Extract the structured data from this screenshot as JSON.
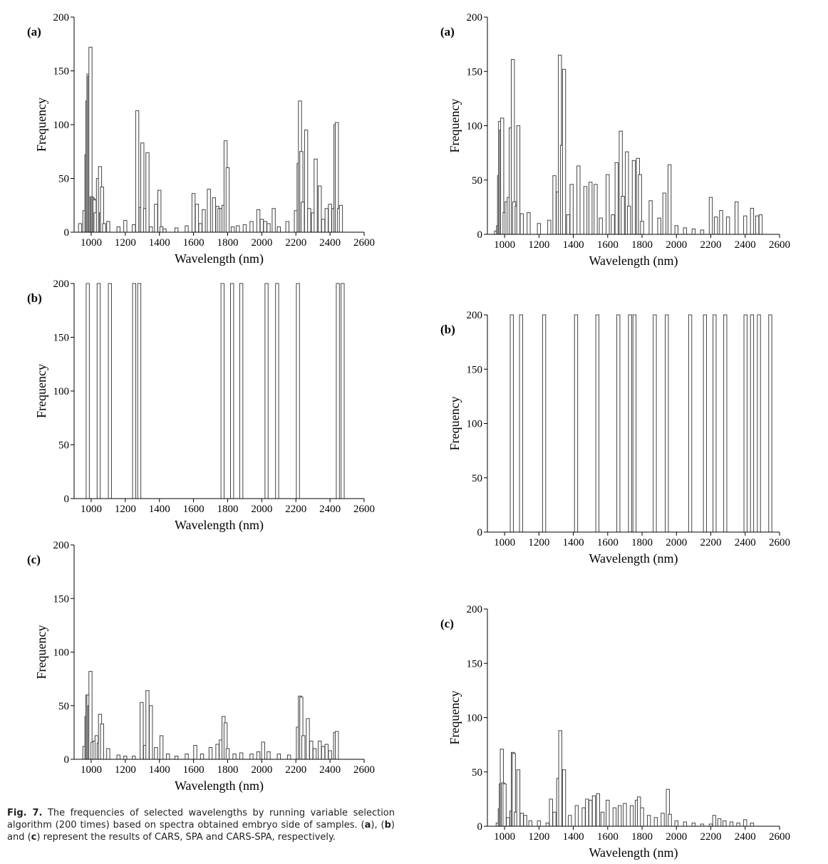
{
  "caption": {
    "figure_label": "Fig. 7.",
    "text_1": " The frequencies of selected wavelengths by running variable selection algorithm (200 times) based on spectra obtained embryo side of samples. (",
    "a": "a",
    "text_2": "), (",
    "b": "b",
    "text_3": ") and (",
    "c": "c",
    "text_4": ") represent the results of CARS, SPA and CARS-SPA, respectively."
  },
  "chart_data": [
    {
      "id": "left-a",
      "type": "bar",
      "panel_label": "(a)",
      "xlabel": "Wavelength (nm)",
      "ylabel": "Frequency",
      "xlim": [
        900,
        2600
      ],
      "ylim": [
        0,
        200
      ],
      "xticks": [
        "1000",
        "1200",
        "1400",
        "1600",
        "1800",
        "2000",
        "2200",
        "2400",
        "2600"
      ],
      "yticks": [
        "0",
        "50",
        "100",
        "150",
        "200"
      ],
      "x": [
        935,
        960,
        972,
        978,
        984,
        990,
        996,
        1002,
        1008,
        1014,
        1020,
        1026,
        1040,
        1052,
        1058,
        1064,
        1076,
        1100,
        1160,
        1200,
        1250,
        1270,
        1290,
        1300,
        1316,
        1330,
        1350,
        1380,
        1400,
        1412,
        1430,
        1500,
        1560,
        1600,
        1620,
        1640,
        1660,
        1690,
        1720,
        1740,
        1752,
        1764,
        1776,
        1788,
        1800,
        1830,
        1860,
        1900,
        1940,
        1980,
        2000,
        2020,
        2040,
        2070,
        2100,
        2150,
        2200,
        2216,
        2224,
        2232,
        2240,
        2260,
        2278,
        2300,
        2316,
        2340,
        2360,
        2380,
        2400,
        2420,
        2432,
        2440,
        2452,
        2464
      ],
      "values": [
        8,
        20,
        72,
        122,
        147,
        145,
        172,
        33,
        32,
        31,
        30,
        18,
        50,
        61,
        18,
        42,
        8,
        10,
        5,
        11,
        7,
        113,
        23,
        83,
        22,
        74,
        5,
        26,
        39,
        5,
        3,
        4,
        6,
        36,
        26,
        8,
        21,
        40,
        32,
        24,
        22,
        22,
        25,
        85,
        60,
        5,
        6,
        7,
        10,
        21,
        12,
        10,
        8,
        22,
        5,
        10,
        20,
        64,
        122,
        75,
        28,
        95,
        22,
        18,
        68,
        43,
        12,
        22,
        26,
        22,
        100,
        102,
        22,
        25
      ]
    },
    {
      "id": "left-b",
      "type": "bar",
      "panel_label": "(b)",
      "xlabel": "Wavelength (nm)",
      "ylabel": "Frequency",
      "xlim": [
        900,
        2600
      ],
      "ylim": [
        0,
        200
      ],
      "xticks": [
        "1000",
        "1200",
        "1400",
        "1600",
        "1800",
        "2000",
        "2200",
        "2400",
        "2600"
      ],
      "yticks": [
        "0",
        "50",
        "100",
        "150",
        "200"
      ],
      "x": [
        980,
        1044,
        1110,
        1252,
        1282,
        1770,
        1826,
        1880,
        2028,
        2090,
        2212,
        2446,
        2474
      ],
      "values": [
        200,
        200,
        200,
        200,
        200,
        200,
        200,
        200,
        200,
        200,
        200,
        200,
        200
      ]
    },
    {
      "id": "left-c",
      "type": "bar",
      "panel_label": "(c)",
      "xlabel": "Wavelength (nm)",
      "ylabel": "Frequency",
      "xlim": [
        900,
        2600
      ],
      "ylim": [
        0,
        200
      ],
      "xticks": [
        "1000",
        "1200",
        "1400",
        "1600",
        "1800",
        "2000",
        "2200",
        "2400",
        "2600"
      ],
      "yticks": [
        "0",
        "50",
        "100",
        "150",
        "200"
      ],
      "x": [
        960,
        972,
        978,
        984,
        990,
        996,
        1008,
        1020,
        1032,
        1044,
        1052,
        1064,
        1100,
        1160,
        1200,
        1250,
        1296,
        1316,
        1330,
        1350,
        1380,
        1412,
        1450,
        1500,
        1560,
        1610,
        1650,
        1700,
        1740,
        1760,
        1776,
        1788,
        1800,
        1840,
        1880,
        1940,
        1980,
        2008,
        2040,
        2100,
        2160,
        2212,
        2224,
        2232,
        2244,
        2270,
        2290,
        2310,
        2340,
        2360,
        2380,
        2400,
        2430,
        2440
      ],
      "values": [
        12,
        40,
        60,
        60,
        50,
        82,
        16,
        17,
        22,
        15,
        42,
        33,
        10,
        4,
        3,
        3,
        53,
        13,
        64,
        50,
        11,
        22,
        5,
        3,
        5,
        13,
        5,
        11,
        14,
        18,
        40,
        34,
        10,
        5,
        6,
        5,
        7,
        16,
        7,
        5,
        4,
        30,
        59,
        58,
        22,
        38,
        17,
        10,
        17,
        12,
        14,
        8,
        25,
        26
      ]
    },
    {
      "id": "right-a",
      "type": "bar",
      "panel_label": "(a)",
      "xlabel": "Wavelength (nm)",
      "ylabel": "Frequency",
      "xlim": [
        900,
        2600
      ],
      "ylim": [
        0,
        200
      ],
      "xticks": [
        "1000",
        "1200",
        "1400",
        "1600",
        "1800",
        "2000",
        "2200",
        "2400",
        "2600"
      ],
      "yticks": [
        "0",
        "50",
        "100",
        "150",
        "200"
      ],
      "x": [
        950,
        962,
        968,
        974,
        980,
        986,
        1000,
        1012,
        1024,
        1036,
        1048,
        1056,
        1070,
        1080,
        1100,
        1140,
        1200,
        1260,
        1290,
        1310,
        1322,
        1334,
        1346,
        1370,
        1390,
        1430,
        1470,
        1500,
        1530,
        1560,
        1600,
        1630,
        1652,
        1676,
        1688,
        1712,
        1724,
        1752,
        1776,
        1788,
        1800,
        1850,
        1900,
        1930,
        1960,
        2000,
        2050,
        2100,
        2150,
        2200,
        2230,
        2260,
        2300,
        2350,
        2400,
        2440,
        2470,
        2490
      ],
      "values": [
        3,
        8,
        54,
        104,
        96,
        107,
        20,
        30,
        34,
        98,
        161,
        30,
        26,
        100,
        19,
        20,
        10,
        13,
        54,
        39,
        165,
        82,
        152,
        18,
        46,
        63,
        44,
        48,
        46,
        15,
        55,
        18,
        66,
        95,
        35,
        76,
        26,
        68,
        70,
        55,
        12,
        31,
        15,
        38,
        64,
        8,
        6,
        5,
        4,
        34,
        16,
        22,
        16,
        30,
        17,
        24,
        17,
        18
      ]
    },
    {
      "id": "right-b",
      "type": "bar",
      "panel_label": "(b)",
      "xlabel": "Wavelength (nm)",
      "ylabel": "Frequency",
      "xlim": [
        900,
        2600
      ],
      "ylim": [
        0,
        200
      ],
      "xticks": [
        "1000",
        "1200",
        "1400",
        "1600",
        "1800",
        "2000",
        "2200",
        "2400",
        "2600"
      ],
      "yticks": [
        "0",
        "50",
        "100",
        "150",
        "200"
      ],
      "x": [
        1042,
        1096,
        1230,
        1416,
        1540,
        1662,
        1730,
        1756,
        1874,
        1944,
        2080,
        2166,
        2222,
        2284,
        2402,
        2440,
        2480,
        2546
      ],
      "values": [
        200,
        200,
        200,
        200,
        200,
        200,
        200,
        200,
        200,
        200,
        200,
        200,
        200,
        200,
        200,
        200,
        200,
        200
      ]
    },
    {
      "id": "right-c",
      "type": "bar",
      "panel_label": "(c)",
      "xlabel": "Wavelength (nm)",
      "ylabel": "Frequency",
      "xlim": [
        900,
        2600
      ],
      "ylim": [
        0,
        200
      ],
      "xticks": [
        "1000",
        "1200",
        "1400",
        "1600",
        "1800",
        "2000",
        "2200",
        "2400",
        "2600"
      ],
      "yticks": [
        "0",
        "50",
        "100",
        "150",
        "200"
      ],
      "x": [
        960,
        972,
        978,
        984,
        990,
        1000,
        1020,
        1040,
        1048,
        1054,
        1066,
        1080,
        1100,
        1120,
        1150,
        1200,
        1250,
        1270,
        1290,
        1312,
        1324,
        1346,
        1380,
        1420,
        1460,
        1480,
        1500,
        1520,
        1544,
        1570,
        1600,
        1640,
        1670,
        1700,
        1740,
        1770,
        1782,
        1800,
        1840,
        1880,
        1920,
        1950,
        1962,
        2000,
        2050,
        2100,
        2150,
        2200,
        2220,
        2250,
        2280,
        2320,
        2360,
        2400,
        2440
      ],
      "values": [
        3,
        16,
        39,
        71,
        40,
        39,
        8,
        14,
        68,
        67,
        13,
        52,
        12,
        10,
        5,
        5,
        3,
        25,
        13,
        44,
        88,
        52,
        10,
        19,
        17,
        25,
        24,
        28,
        30,
        13,
        24,
        17,
        19,
        21,
        19,
        24,
        27,
        17,
        10,
        8,
        12,
        34,
        11,
        5,
        4,
        3,
        2,
        2,
        10,
        7,
        5,
        4,
        3,
        6,
        3
      ]
    }
  ]
}
